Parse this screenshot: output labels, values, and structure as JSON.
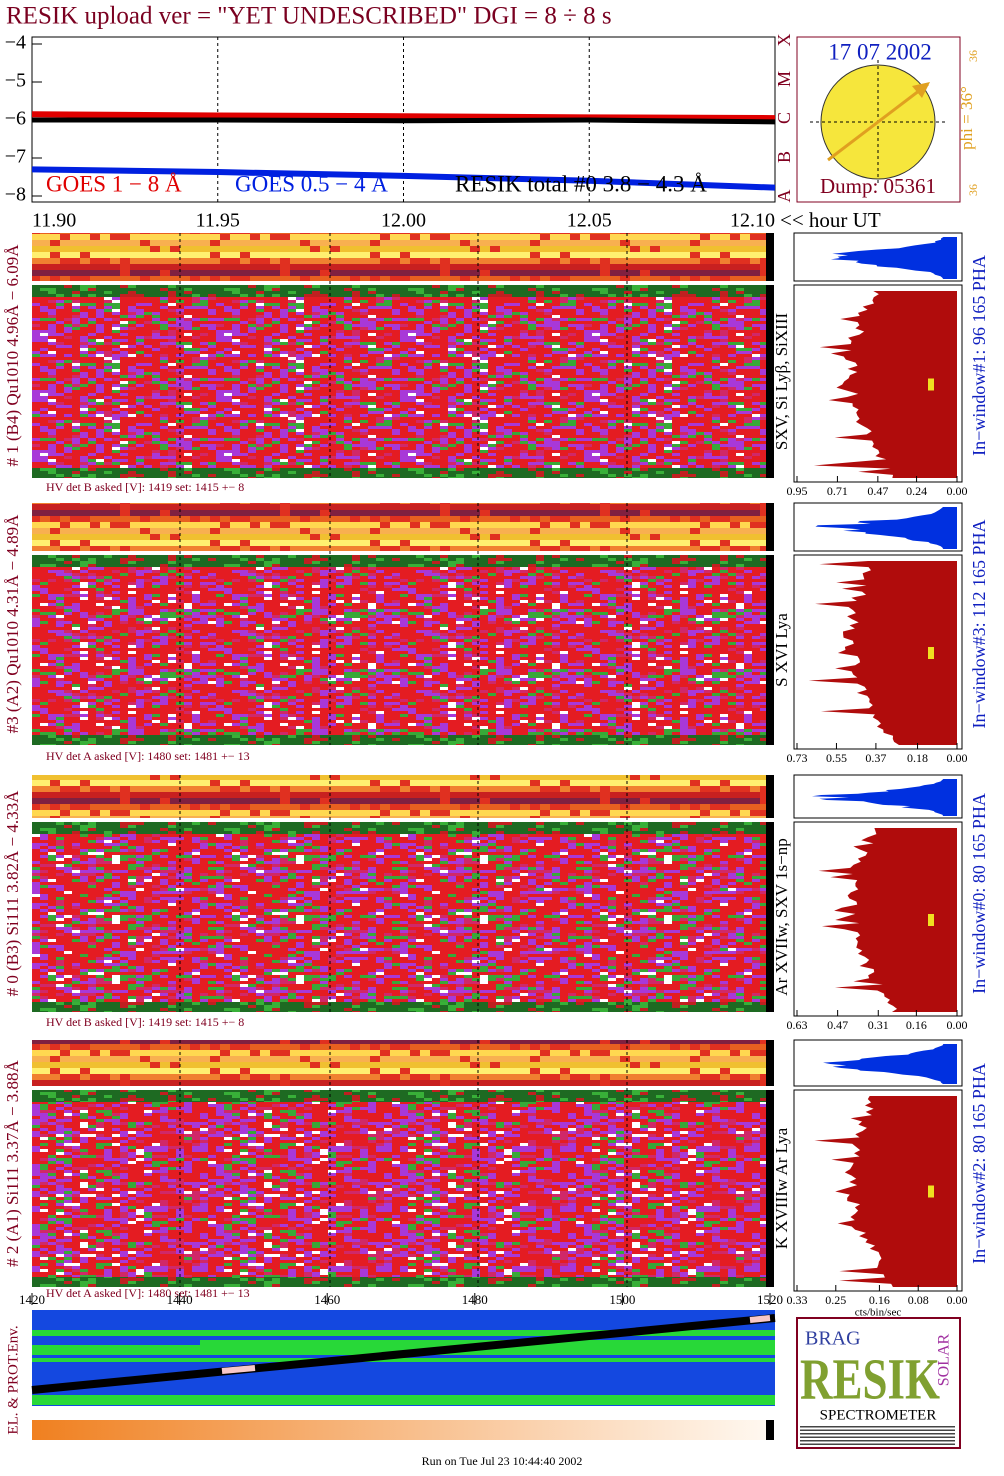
{
  "title": "RESIK upload ver = \"YET UNDESCRIBED\"  DGI =   8 ÷   8 s",
  "chart_data": {
    "type": "line",
    "x": [
      11.9,
      11.95,
      12.0,
      12.05,
      12.1
    ],
    "xlim": [
      11.9,
      12.1
    ],
    "xticks": [
      {
        "value": 11.9,
        "label": "11.90"
      },
      {
        "value": 11.95,
        "label": "11.95"
      },
      {
        "value": 12.0,
        "label": "12.00"
      },
      {
        "value": 12.05,
        "label": "12.05"
      },
      {
        "value": 12.1,
        "label": "12.10"
      }
    ],
    "x_label": "<< hour UT",
    "ylim": [
      -8,
      -4
    ],
    "yticks": [
      {
        "value": -4,
        "label": "−4"
      },
      {
        "value": -5,
        "label": "−5"
      },
      {
        "value": -6,
        "label": "−6"
      },
      {
        "value": -7,
        "label": "−7"
      },
      {
        "value": -8,
        "label": "−8"
      }
    ],
    "grid": true,
    "series": [
      {
        "name": "GOES 1 − 8 Å",
        "color": "#e00000",
        "values": [
          -5.85,
          -5.88,
          -5.9,
          -5.93,
          -5.95
        ]
      },
      {
        "name": "GOES 0.5 − 4 Å",
        "color": "#0020e0",
        "values": [
          -7.3,
          -7.37,
          -7.47,
          -7.6,
          -7.78
        ]
      },
      {
        "name": "RESIK total #0  3.8 − 4.3 Å",
        "color": "#000000",
        "values": [
          -6.0,
          -6.0,
          -6.02,
          -6.0,
          -6.05
        ]
      }
    ]
  },
  "sun": {
    "date": "17 07 2002",
    "dump": "Dump: 05361",
    "phi": "phi = 36°",
    "scale_top": "36",
    "scale_bottom": "36",
    "classes": [
      "A",
      "B",
      "C",
      "M",
      "X"
    ]
  },
  "panels": [
    {
      "label": "# 1 (B4) Qu1010 4.96Å − 6.09Å",
      "line": "SXV, Si Lyβ, SiXIII",
      "hv": "HV det B asked [V]:  1419 set:  1415 +−    8",
      "pha_label": "In−window#1:   96 165 PHA",
      "pha_xlim": [
        0.95,
        0
      ],
      "pha_ticks": [
        {
          "value": 0.95,
          "label": "0.95"
        },
        {
          "value": 0.71,
          "label": "0.71"
        },
        {
          "value": 0.47,
          "label": "0.47"
        },
        {
          "value": 0.24,
          "label": "0.24"
        },
        {
          "value": 0,
          "label": "0.00"
        }
      ]
    },
    {
      "label": "#3 (A2) Qu1010  4.31Å − 4.89Å",
      "line": "S XVI Lya",
      "hv": "HV det A asked [V]:  1480 set:  1481 +−    13",
      "pha_label": "In−window#3:  112 165 PHA",
      "pha_xlim": [
        0.73,
        0
      ],
      "pha_ticks": [
        {
          "value": 0.73,
          "label": "0.73"
        },
        {
          "value": 0.55,
          "label": "0.55"
        },
        {
          "value": 0.37,
          "label": "0.37"
        },
        {
          "value": 0.18,
          "label": "0.18"
        },
        {
          "value": 0,
          "label": "0.00"
        }
      ]
    },
    {
      "label": "# 0 (B3) Si111  3.82Å − 4.33Å",
      "line": "Ar XVIIw,  SXV 1s−np",
      "hv": "HV det B asked [V]:  1419 set:  1415 +−    8",
      "pha_label": "In−window#0:   80 165 PHA",
      "pha_xlim": [
        0.63,
        0
      ],
      "pha_ticks": [
        {
          "value": 0.63,
          "label": "0.63"
        },
        {
          "value": 0.47,
          "label": "0.47"
        },
        {
          "value": 0.31,
          "label": "0.31"
        },
        {
          "value": 0.16,
          "label": "0.16"
        },
        {
          "value": 0,
          "label": "0.00"
        }
      ]
    },
    {
      "label": "# 2 (A1) Si111  3.37Å − 3.88Å",
      "line": "K XVIIIw  Ar Lya",
      "hv": "HV det A asked [V]:  1480 set:  1481 +−    13",
      "pha_label": "In−window#2:   80 165 PHA",
      "pha_xlim": [
        0.33,
        0
      ],
      "pha_ticks": [
        {
          "value": 0.33,
          "label": "0.33"
        },
        {
          "value": 0.25,
          "label": "0.25"
        },
        {
          "value": 0.16,
          "label": "0.16"
        },
        {
          "value": 0.08,
          "label": "0.08"
        },
        {
          "value": 0,
          "label": "0.00"
        }
      ]
    }
  ],
  "pha_axis_label": "cts/bin/sec",
  "environment": {
    "label": "EL. & PROT.Env.",
    "xlim": [
      1420,
      1520
    ],
    "xticks": [
      1420,
      1440,
      1460,
      1480,
      1500,
      1520
    ]
  },
  "logo": {
    "brag": "BRAG",
    "resik": "RESIK",
    "solar": "SOLAR",
    "spectrometer": "SPECTROMETER"
  },
  "footer": "Run on Tue Jul 23 10:44:40 2002"
}
